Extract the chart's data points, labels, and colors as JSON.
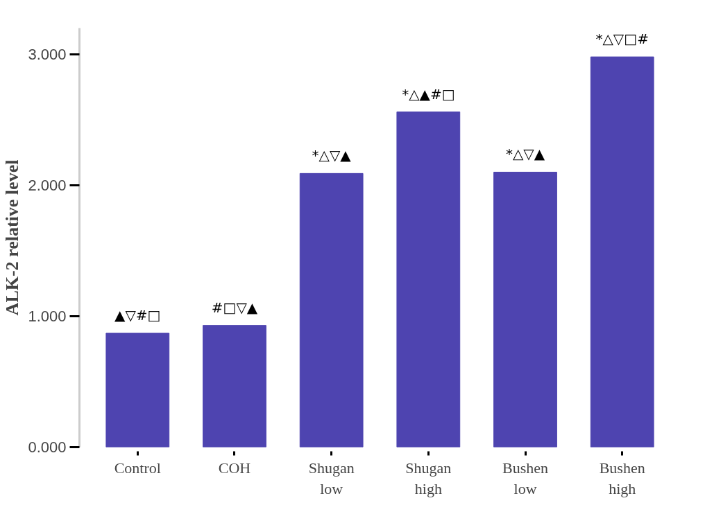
{
  "chart_data": {
    "type": "bar",
    "ylabel": "ALK-2 relative level",
    "categories": [
      "Control",
      "COH",
      "Shugan\nlow",
      "Shugan\nhigh",
      "Bushen\nlow",
      "Bushen\nhigh"
    ],
    "values": [
      0.87,
      0.93,
      2.09,
      2.56,
      2.1,
      2.98
    ],
    "color": "#4e44b0",
    "ylim": [
      0,
      3.2
    ],
    "yticks": [
      {
        "value": 0,
        "label": "0.000"
      },
      {
        "value": 1,
        "label": "1.000"
      },
      {
        "value": 2,
        "label": "2.000"
      },
      {
        "value": 3,
        "label": "3.000"
      }
    ],
    "grid": false,
    "annotations": [
      {
        "text": "▲▽#□",
        "x": "Control",
        "y": 0.87
      },
      {
        "text": "#□▽▲",
        "x": "COH",
        "y": 0.93
      },
      {
        "text": "*△▽▲",
        "x": "Shugan\nlow",
        "y": 2.09
      },
      {
        "text": "*△▲#□",
        "x": "Shugan\nhigh",
        "y": 2.56
      },
      {
        "text": "*△▽▲",
        "x": "Bushen\nlow",
        "y": 2.1
      },
      {
        "text": "*△▽□#",
        "x": "Bushen\nhigh",
        "y": 2.98
      }
    ]
  }
}
